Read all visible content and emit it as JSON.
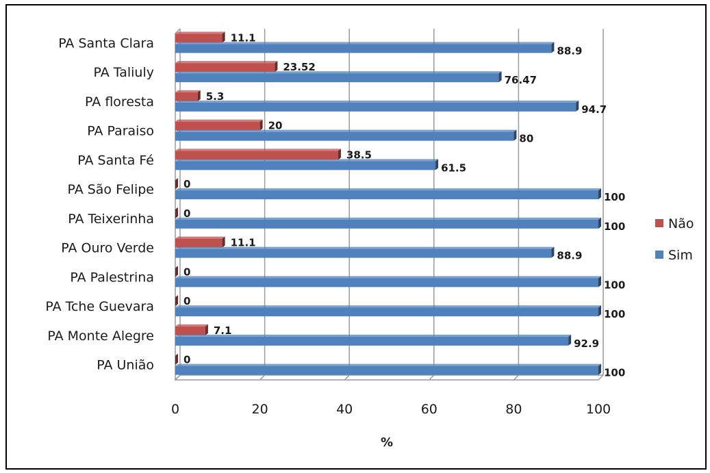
{
  "chart_data": {
    "type": "bar",
    "orientation": "horizontal",
    "categories": [
      "PA Santa Clara",
      "PA Taliuly",
      "PA floresta",
      "PA Paraiso",
      "PA Santa Fé",
      "PA São Felipe",
      "PA Teixerinha",
      "PA Ouro Verde",
      "PA Palestrina",
      "PA Tche Guevara",
      "PA Monte Alegre",
      "PA União"
    ],
    "series": [
      {
        "name": "Não",
        "color": "#c0504d",
        "values": [
          11.1,
          23.52,
          5.3,
          20,
          38.5,
          0,
          0,
          11.1,
          0,
          0,
          7.1,
          0
        ],
        "labels": [
          "11.1",
          "23.52",
          "5.3",
          "20",
          "38.5",
          "0",
          "0",
          "11.1",
          "0",
          "0",
          "7.1",
          "0"
        ]
      },
      {
        "name": "Sim",
        "color": "#4f81bd",
        "values": [
          88.9,
          76.47,
          94.7,
          80,
          61.5,
          100,
          100,
          88.9,
          100,
          100,
          92.9,
          100
        ],
        "labels": [
          "88.9",
          "76.47",
          "94.7",
          "80",
          "61.5",
          "100",
          "100",
          "88.9",
          "100",
          "100",
          "92.9",
          "100"
        ]
      }
    ],
    "xlabel": "%",
    "ylabel": "",
    "xlim": [
      0,
      100
    ],
    "xticks": [
      "0",
      "20",
      "40",
      "60",
      "80",
      "100"
    ],
    "grid": true,
    "legend": "right"
  }
}
